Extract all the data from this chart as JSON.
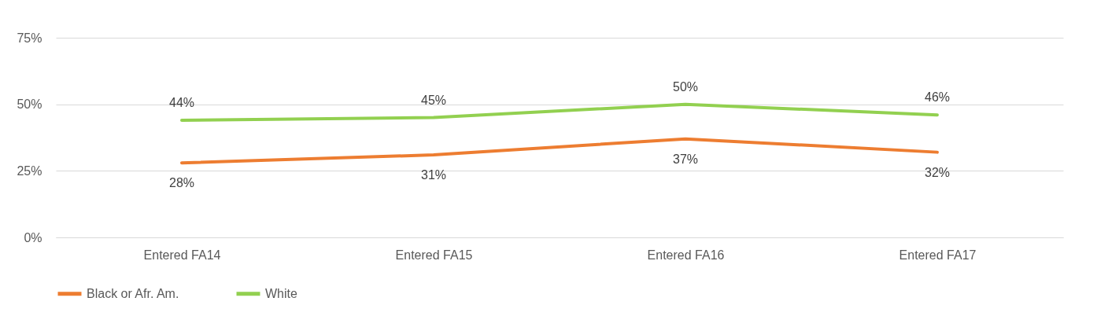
{
  "chart_data": {
    "type": "line",
    "categories": [
      "Entered FA14",
      "Entered FA15",
      "Entered FA16",
      "Entered FA17"
    ],
    "series": [
      {
        "name": "Black or Afr. Am.",
        "color": "#ed7d31",
        "values": [
          28,
          31,
          37,
          32
        ],
        "value_labels": [
          "28%",
          "31%",
          "37%",
          "32%"
        ]
      },
      {
        "name": "White",
        "color": "#92d050",
        "values": [
          44,
          45,
          50,
          46
        ],
        "value_labels": [
          "44%",
          "45%",
          "50%",
          "46%"
        ]
      }
    ],
    "ylim": [
      0,
      75
    ],
    "yticks": [
      {
        "value": 0,
        "label": "0%"
      },
      {
        "value": 25,
        "label": "25%"
      },
      {
        "value": 50,
        "label": "50%"
      },
      {
        "value": 75,
        "label": "75%"
      }
    ],
    "grid": "y",
    "legend": "bottom",
    "marker": "none"
  }
}
